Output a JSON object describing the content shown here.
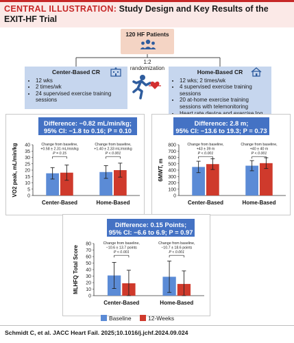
{
  "header": {
    "lead": "CENTRAL ILLUSTRATION:",
    "title": "Study Design and Key Results of the EXIT-HF Trial"
  },
  "patients": {
    "label": "120 HF Patients",
    "icon": "people-icon"
  },
  "randomization": {
    "line1": "1:2",
    "line2": "randomization",
    "icon": "runner-heart-icon"
  },
  "arms": {
    "center": {
      "title": "Center-Based CR",
      "icon": "hospital-icon",
      "items": [
        "12 wks",
        "2 times/wk",
        "24 supervised exercise training sessions"
      ]
    },
    "home": {
      "title": "Home-Based CR",
      "icon": "house-icon",
      "items": [
        "12 wks; 2 times/wk",
        "4 supervised exercise training sessions",
        "20 at-home exercise training sessions with telemonitoring",
        "Heart rate device and exercise log"
      ]
    }
  },
  "diffs": {
    "vo2": {
      "line1": "Difference: −0.82 mL/min/kg;",
      "line2": "95% CI: −1.8 to 0.16; P = 0.10"
    },
    "gmwt": {
      "line1": "Difference: 2.8 m;",
      "line2": "95% CI: −13.6 to 19.3; P = 0.73"
    },
    "mlhfq": {
      "line1": "Difference: 0.15 Points;",
      "line2": "95% CI: −6.6 to 6.9; P = 0.97"
    }
  },
  "legend": {
    "baseline": {
      "label": "Baseline",
      "color": "#5b8bd6"
    },
    "week12": {
      "label": "12-Weeks",
      "color": "#cf3a2c"
    }
  },
  "footer": {
    "citation": "Schmidt C, et al. JACC Heart Fail. 2025;10.1016/j.jchf.2024.09.024"
  },
  "chart_data": [
    {
      "type": "bar",
      "ylabel": "VO2 peak, mL/min/kg",
      "ylim": [
        0,
        40
      ],
      "yticks": [
        0,
        5,
        10,
        15,
        20,
        25,
        30,
        35,
        40
      ],
      "categories": [
        "Center-Based",
        "Home-Based"
      ],
      "series": [
        {
          "name": "Baseline",
          "values": [
            17.5,
            18.5
          ],
          "err": [
            4.5,
            5
          ]
        },
        {
          "name": "12-Weeks",
          "values": [
            18,
            20
          ],
          "err": [
            6,
            5.5
          ]
        }
      ],
      "annotations": [
        {
          "lines": [
            "Change from baseline,",
            "+0.58 ± 2.31 mL/min/kg",
            "P = 0.15"
          ]
        },
        {
          "lines": [
            "Change from baseline,",
            "+1.40 ± 2.33 mL/min/kg",
            "P < 0.001"
          ]
        }
      ]
    },
    {
      "type": "bar",
      "ylabel": "6MWT, m",
      "ylim": [
        0,
        800
      ],
      "yticks": [
        0,
        100,
        200,
        300,
        400,
        500,
        600,
        700,
        800
      ],
      "categories": [
        "Center-Based",
        "Home-Based"
      ],
      "series": [
        {
          "name": "Baseline",
          "values": [
            450,
            470
          ],
          "err": [
            90,
            80
          ]
        },
        {
          "name": "12-Weeks",
          "values": [
            495,
            510
          ],
          "err": [
            85,
            85
          ]
        }
      ],
      "annotations": [
        {
          "lines": [
            "Change from baseline,",
            "+43 ± 39 m",
            "P < 0.001"
          ]
        },
        {
          "lines": [
            "Change from baseline,",
            "+40 ± 40 m",
            "P < 0.001"
          ]
        }
      ]
    },
    {
      "type": "bar",
      "ylabel": "MLHFQ Total Score",
      "ylim": [
        0,
        80
      ],
      "yticks": [
        0,
        10,
        20,
        30,
        40,
        50,
        60,
        70,
        80
      ],
      "categories": [
        "Center-Based",
        "Home-Based"
      ],
      "series": [
        {
          "name": "Baseline",
          "values": [
            31,
            29
          ],
          "err": [
            20,
            24
          ]
        },
        {
          "name": "12-Weeks",
          "values": [
            19,
            18
          ],
          "err": [
            20,
            20
          ]
        }
      ],
      "annotations": [
        {
          "lines": [
            "Change from baseline,",
            "−10.6 ± 13.7 points",
            "P < 0.001"
          ]
        },
        {
          "lines": [
            "Change from baseline,",
            "−10.7 ± 18.6 points",
            "P < 0.001"
          ]
        }
      ]
    }
  ]
}
